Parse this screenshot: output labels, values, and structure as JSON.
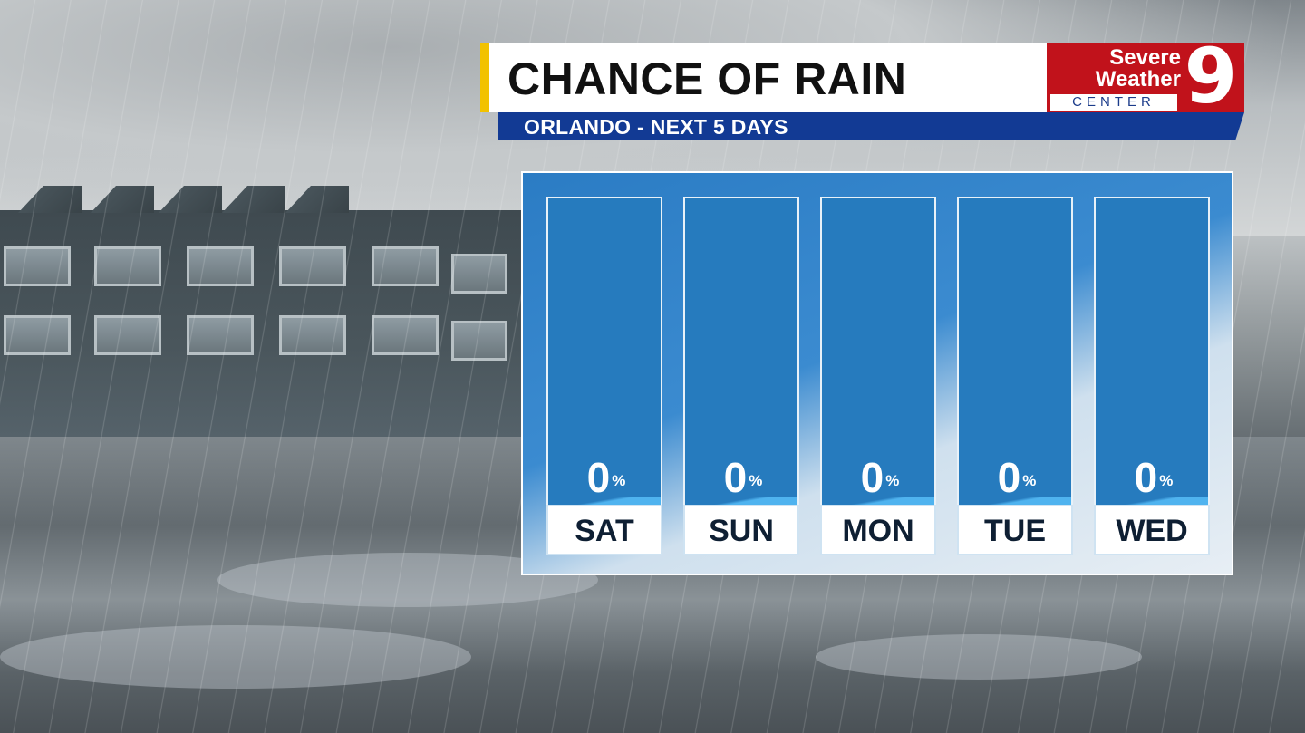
{
  "header": {
    "title": "CHANCE OF RAIN",
    "subtitle": "ORLANDO - NEXT 5 DAYS"
  },
  "logo": {
    "line1": "Severe",
    "line2": "Weather",
    "line3": "CENTER",
    "number": "9"
  },
  "colors": {
    "accent_yellow": "#f2c200",
    "logo_red": "#c1121b",
    "subtitle_navy": "#123a94",
    "bar_blue": "#267bbe"
  },
  "chart_data": {
    "type": "bar",
    "title": "CHANCE OF RAIN",
    "categories": [
      "SAT",
      "SUN",
      "MON",
      "TUE",
      "WED"
    ],
    "values": [
      0,
      0,
      0,
      0,
      0
    ],
    "value_labels": [
      "0",
      "0",
      "0",
      "0",
      "0"
    ],
    "unit": "%",
    "ylim": [
      0,
      100
    ],
    "grid": false
  }
}
